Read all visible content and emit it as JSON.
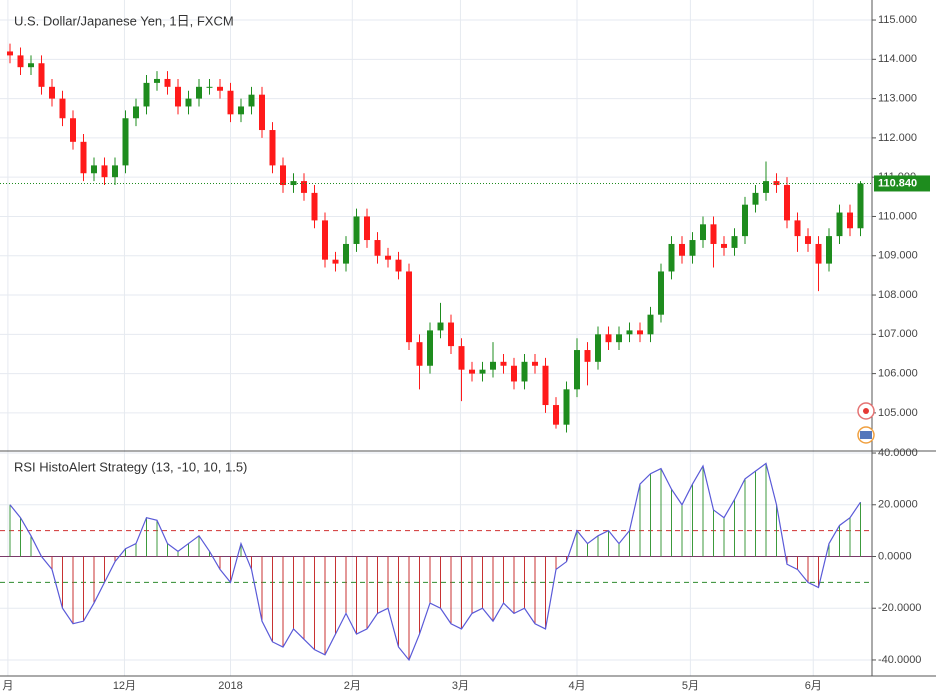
{
  "chart_data": [
    {
      "type": "candlestick",
      "title": "U.S. Dollar/Japanese Yen, 1日, FXCM",
      "up_color": "#1e8c1e",
      "down_color": "#ff1a1a",
      "open": [
        114.2,
        114.1,
        113.8,
        113.9,
        113.3,
        113.0,
        112.5,
        111.9,
        111.1,
        111.3,
        111.0,
        111.3,
        112.5,
        112.8,
        113.4,
        113.5,
        113.3,
        112.8,
        113.0,
        113.3,
        113.3,
        113.2,
        112.6,
        112.8,
        113.1,
        112.2,
        111.3,
        110.8,
        110.9,
        110.6,
        109.9,
        108.9,
        108.8,
        109.3,
        110.0,
        109.4,
        109.0,
        108.9,
        108.6,
        106.8,
        106.2,
        107.1,
        107.3,
        106.7,
        106.1,
        106.0,
        106.1,
        106.3,
        106.2,
        105.8,
        106.3,
        106.2,
        105.2,
        104.7,
        105.6,
        106.6,
        106.3,
        107.0,
        106.8,
        107.0,
        107.1,
        107.0,
        107.5,
        108.6,
        109.3,
        109.0,
        109.4,
        109.8,
        109.3,
        109.2,
        109.5,
        110.3,
        110.6,
        110.9,
        110.8,
        109.9,
        109.5,
        109.3,
        108.8,
        109.5,
        110.1,
        109.7
      ],
      "high": [
        114.4,
        114.3,
        114.1,
        114.1,
        113.5,
        113.2,
        112.7,
        112.1,
        111.5,
        111.5,
        111.5,
        112.7,
        113.0,
        113.6,
        113.7,
        113.7,
        113.5,
        113.2,
        113.5,
        113.5,
        113.5,
        113.4,
        113.0,
        113.3,
        113.3,
        112.4,
        111.5,
        111.1,
        111.1,
        110.8,
        110.1,
        109.1,
        109.5,
        110.2,
        110.2,
        109.6,
        109.2,
        109.1,
        108.8,
        107.0,
        107.3,
        107.8,
        107.5,
        106.9,
        106.3,
        106.3,
        106.8,
        106.5,
        106.4,
        106.5,
        106.5,
        106.4,
        105.4,
        105.8,
        106.9,
        106.8,
        107.2,
        107.2,
        107.2,
        107.3,
        107.3,
        107.7,
        108.8,
        109.5,
        109.5,
        109.6,
        110.0,
        110.0,
        109.5,
        109.7,
        110.5,
        110.8,
        111.4,
        111.1,
        111.0,
        110.1,
        109.7,
        109.5,
        109.7,
        110.3,
        110.3,
        110.9
      ],
      "low": [
        113.9,
        113.6,
        113.6,
        113.1,
        112.8,
        112.3,
        111.7,
        110.9,
        110.9,
        110.8,
        110.8,
        111.1,
        112.3,
        112.6,
        113.2,
        113.1,
        112.6,
        112.6,
        112.8,
        113.1,
        113.0,
        112.4,
        112.4,
        112.6,
        112.0,
        111.1,
        110.6,
        110.6,
        110.4,
        109.7,
        108.7,
        108.6,
        108.6,
        109.1,
        109.2,
        108.8,
        108.7,
        108.4,
        106.6,
        105.6,
        106.0,
        106.9,
        106.5,
        105.3,
        105.8,
        105.8,
        105.9,
        106.0,
        105.6,
        105.6,
        106.0,
        105.0,
        104.6,
        104.5,
        105.4,
        105.7,
        106.1,
        106.6,
        106.6,
        106.8,
        106.8,
        106.8,
        107.3,
        108.4,
        108.8,
        108.8,
        109.2,
        108.7,
        109.0,
        109.0,
        109.3,
        110.1,
        110.4,
        110.6,
        109.7,
        109.1,
        109.1,
        108.1,
        108.6,
        109.3,
        109.5,
        109.5
      ],
      "close": [
        114.1,
        113.8,
        113.9,
        113.3,
        113.0,
        112.5,
        111.9,
        111.1,
        111.3,
        111.0,
        111.3,
        112.5,
        112.8,
        113.4,
        113.5,
        113.3,
        112.8,
        113.0,
        113.3,
        113.3,
        113.2,
        112.6,
        112.8,
        113.1,
        112.2,
        111.3,
        110.8,
        110.9,
        110.6,
        109.9,
        108.9,
        108.8,
        109.3,
        110.0,
        109.4,
        109.0,
        108.9,
        108.6,
        106.8,
        106.2,
        107.1,
        107.3,
        106.7,
        106.1,
        106.0,
        106.1,
        106.3,
        106.2,
        105.8,
        106.3,
        106.2,
        105.2,
        104.7,
        105.6,
        106.6,
        106.3,
        107.0,
        106.8,
        107.0,
        107.1,
        107.0,
        107.5,
        108.6,
        109.3,
        109.0,
        109.4,
        109.8,
        109.3,
        109.2,
        109.5,
        110.3,
        110.6,
        110.9,
        110.8,
        109.9,
        109.5,
        109.3,
        108.8,
        109.5,
        110.1,
        109.7,
        110.84
      ],
      "last_price": {
        "value": 110.84,
        "label": "110.840"
      },
      "ylim": [
        104.03,
        115.51
      ],
      "yticks": [
        {
          "value": 105,
          "label": "105.000"
        },
        {
          "value": 106,
          "label": "106.000"
        },
        {
          "value": 107,
          "label": "107.000"
        },
        {
          "value": 108,
          "label": "108.000"
        },
        {
          "value": 109,
          "label": "109.000"
        },
        {
          "value": 110,
          "label": "110.000"
        },
        {
          "value": 111,
          "label": "111.000"
        },
        {
          "value": 112,
          "label": "112.000"
        },
        {
          "value": 113,
          "label": "113.000"
        },
        {
          "value": 114,
          "label": "114.000"
        },
        {
          "value": 115,
          "label": "115.000"
        }
      ],
      "grid": true
    },
    {
      "type": "histogram-line",
      "title": "RSI HistoAlert Strategy (13, -10, 10, 1.5)",
      "line_color": "#5a5ad8",
      "pos_color": "#3c9a3c",
      "neg_color": "#c83232",
      "values": [
        20,
        15,
        8,
        0,
        -5,
        -20,
        -26,
        -25,
        -18,
        -10,
        -2,
        3,
        5,
        15,
        14,
        5,
        2,
        5,
        8,
        2,
        -5,
        -10,
        5,
        -5,
        -25,
        -33,
        -35,
        -28,
        -32,
        -36,
        -38,
        -30,
        -22,
        -30,
        -28,
        -22,
        -20,
        -35,
        -40,
        -30,
        -18,
        -20,
        -26,
        -28,
        -22,
        -20,
        -25,
        -18,
        -22,
        -20,
        -26,
        -28,
        -5,
        -2,
        10,
        5,
        8,
        10,
        5,
        10,
        28,
        32,
        34,
        26,
        20,
        28,
        35,
        18,
        15,
        22,
        30,
        33,
        36,
        20,
        -3,
        -5,
        -10,
        -12,
        5,
        12,
        15,
        21
      ],
      "upper_level": 10,
      "lower_level": -10,
      "ylim": [
        -46.2,
        40.4
      ],
      "yticks": [
        {
          "value": -40,
          "label": "-40.0000"
        },
        {
          "value": -20,
          "label": "-20.0000"
        },
        {
          "value": 0,
          "label": "0.0000"
        },
        {
          "value": 20,
          "label": "20.0000"
        },
        {
          "value": 40,
          "label": "40.0000"
        }
      ],
      "xticks": [
        {
          "value": -0.2,
          "label": "月"
        },
        {
          "value": 10.9,
          "label": "12月"
        },
        {
          "value": 21,
          "label": "2018"
        },
        {
          "value": 32.6,
          "label": "2月"
        },
        {
          "value": 42.9,
          "label": "3月"
        },
        {
          "value": 54,
          "label": "4月"
        },
        {
          "value": 64.8,
          "label": "5月"
        },
        {
          "value": 76.5,
          "label": "6月"
        }
      ],
      "grid": true
    }
  ]
}
